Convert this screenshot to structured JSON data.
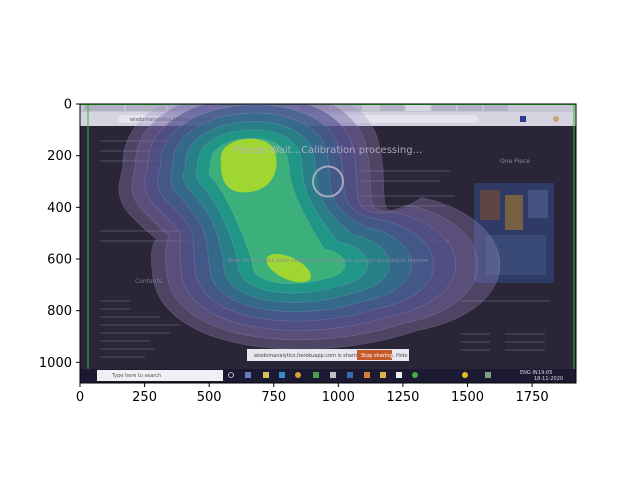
{
  "chart_data": {
    "type": "heatmap",
    "title": "",
    "xlabel": "",
    "ylabel": "",
    "xlim": [
      0,
      1920
    ],
    "ylim": [
      1080,
      0
    ],
    "x_ticks": [
      0,
      250,
      500,
      750,
      1000,
      1250,
      1500,
      1750
    ],
    "y_ticks": [
      0,
      200,
      400,
      600,
      800,
      1000
    ],
    "grid": false,
    "legend": "none",
    "colormap": "viridis",
    "density_peaks": [
      {
        "x": 650,
        "y": 230,
        "weight": 1.0
      },
      {
        "x": 800,
        "y": 620,
        "weight": 0.85
      }
    ],
    "gaze_marker": {
      "x": 960,
      "y": 300
    }
  },
  "background_screenshot": {
    "browser_url": "wisdomanalytics.herokuapp.com",
    "calibration_message": "Please Wait...Calibration processing...",
    "hint_text": "Keep the head still while calibrating for maximum eyesight accuracy to improve",
    "sharing_notice": "wisdomanalytics.herokuapp.com is sharing your screen.",
    "stop_sharing_label": "Stop sharing",
    "hide_label": "Hide",
    "taskbar_search_placeholder": "Type here to search",
    "taskbar_lang": "ENG IN",
    "taskbar_time": "19:05",
    "taskbar_date": "18-11-2020",
    "sidebar_heading": "One Piece",
    "left_heading": "Contents"
  },
  "colors": {
    "screen_dark": "#2a2436",
    "browser_tabbar": "#c9c7d4",
    "taskbar": "#1a1830",
    "stop_button": "#c75a2a",
    "border_green": "#22c322",
    "gaze_ring": "#b8b4c8"
  }
}
